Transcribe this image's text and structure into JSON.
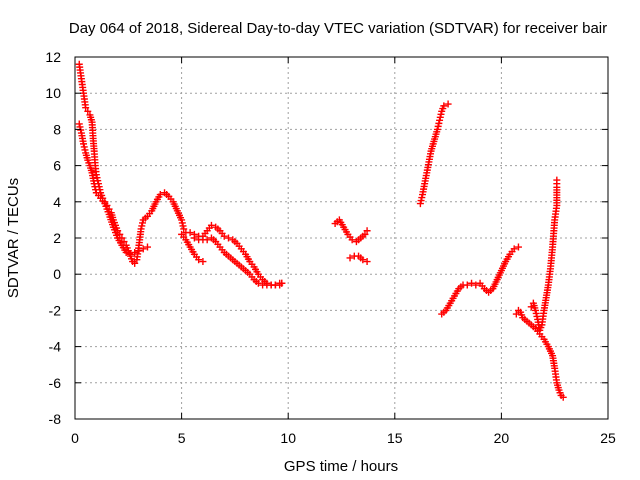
{
  "chart_data": {
    "type": "scatter",
    "title": "Day 064 of 2018, Sidereal Day-to-day VTEC variation (SDTVAR) for receiver bair",
    "xlabel": "GPS time / hours",
    "ylabel": "SDTVAR / TECUs",
    "xlim": [
      0,
      25
    ],
    "ylim": [
      -8,
      12
    ],
    "xticks": [
      0,
      5,
      10,
      15,
      20,
      25
    ],
    "yticks": [
      -8,
      -6,
      -4,
      -2,
      0,
      2,
      4,
      6,
      8,
      10,
      12
    ],
    "grid": true,
    "legend": "none",
    "marker": "plus",
    "color": "#ff0000",
    "series": [
      {
        "points": [
          [
            0.2,
            11.6
          ],
          [
            0.3,
            10.8
          ],
          [
            0.4,
            10.0
          ],
          [
            0.5,
            9.2
          ],
          [
            0.6,
            9.0
          ],
          [
            0.7,
            8.8
          ],
          [
            0.8,
            8.4
          ],
          [
            0.85,
            7.5
          ],
          [
            0.9,
            6.8
          ],
          [
            0.95,
            6.0
          ],
          [
            1.0,
            5.5
          ],
          [
            1.1,
            5.0
          ],
          [
            1.2,
            4.5
          ],
          [
            1.3,
            4.2
          ],
          [
            1.4,
            4.0
          ],
          [
            1.5,
            3.8
          ],
          [
            1.6,
            3.6
          ],
          [
            1.7,
            3.4
          ],
          [
            1.8,
            3.0
          ],
          [
            1.9,
            2.7
          ],
          [
            2.0,
            2.4
          ],
          [
            2.1,
            2.2
          ],
          [
            2.2,
            2.0
          ],
          [
            2.3,
            1.8
          ],
          [
            2.4,
            1.6
          ],
          [
            2.5,
            1.3
          ],
          [
            2.6,
            1.0
          ],
          [
            2.7,
            0.7
          ],
          [
            2.8,
            0.6
          ],
          [
            2.9,
            0.8
          ],
          [
            3.0,
            1.6
          ],
          [
            3.1,
            2.5
          ],
          [
            3.2,
            3.0
          ],
          [
            3.4,
            3.2
          ],
          [
            3.6,
            3.5
          ],
          [
            3.8,
            4.0
          ],
          [
            4.0,
            4.4
          ],
          [
            4.2,
            4.5
          ],
          [
            4.4,
            4.3
          ],
          [
            4.6,
            4.0
          ],
          [
            4.8,
            3.5
          ],
          [
            5.0,
            3.0
          ],
          [
            5.1,
            2.5
          ],
          [
            5.2,
            2.3
          ],
          [
            5.4,
            2.3
          ],
          [
            5.6,
            2.2
          ],
          [
            5.8,
            2.1
          ],
          [
            6.0,
            2.1
          ],
          [
            6.2,
            2.4
          ],
          [
            6.4,
            2.7
          ],
          [
            6.6,
            2.6
          ],
          [
            6.8,
            2.4
          ],
          [
            7.0,
            2.1
          ],
          [
            7.2,
            2.0
          ],
          [
            7.4,
            1.9
          ],
          [
            7.6,
            1.7
          ],
          [
            7.8,
            1.4
          ],
          [
            8.0,
            1.1
          ],
          [
            8.2,
            0.7
          ],
          [
            8.4,
            0.4
          ],
          [
            8.6,
            0.0
          ],
          [
            8.8,
            -0.3
          ],
          [
            9.0,
            -0.5
          ],
          [
            9.2,
            -0.6
          ],
          [
            9.4,
            -0.6
          ],
          [
            9.6,
            -0.6
          ],
          [
            9.7,
            -0.5
          ]
        ]
      },
      {
        "points": [
          [
            0.2,
            8.3
          ],
          [
            0.3,
            7.8
          ],
          [
            0.4,
            7.2
          ],
          [
            0.5,
            6.7
          ],
          [
            0.6,
            6.3
          ],
          [
            0.7,
            6.0
          ],
          [
            0.8,
            5.6
          ],
          [
            0.9,
            5.0
          ],
          [
            1.0,
            4.5
          ],
          [
            1.2,
            4.2
          ],
          [
            1.4,
            3.9
          ],
          [
            1.6,
            3.3
          ],
          [
            1.8,
            2.6
          ],
          [
            2.0,
            2.0
          ],
          [
            2.2,
            1.6
          ],
          [
            2.4,
            1.2
          ],
          [
            2.6,
            1.1
          ],
          [
            2.8,
            1.2
          ],
          [
            3.0,
            1.3
          ],
          [
            3.2,
            1.4
          ],
          [
            3.4,
            1.5
          ]
        ]
      },
      {
        "points": [
          [
            5.0,
            2.2
          ],
          [
            5.2,
            1.9
          ],
          [
            5.4,
            1.5
          ],
          [
            5.6,
            1.1
          ],
          [
            5.8,
            0.8
          ],
          [
            6.0,
            0.7
          ]
        ]
      },
      {
        "points": [
          [
            5.6,
            2.0
          ],
          [
            5.8,
            1.9
          ],
          [
            6.0,
            1.9
          ],
          [
            6.2,
            1.9
          ],
          [
            6.4,
            2.0
          ],
          [
            6.6,
            1.8
          ],
          [
            6.8,
            1.5
          ],
          [
            7.0,
            1.2
          ],
          [
            7.2,
            1.0
          ],
          [
            7.4,
            0.8
          ],
          [
            7.6,
            0.6
          ],
          [
            7.8,
            0.4
          ],
          [
            8.0,
            0.2
          ],
          [
            8.2,
            0.0
          ],
          [
            8.4,
            -0.3
          ],
          [
            8.6,
            -0.5
          ],
          [
            8.8,
            -0.6
          ],
          [
            9.0,
            -0.6
          ],
          [
            9.2,
            -0.6
          ],
          [
            9.4,
            -0.6
          ],
          [
            9.6,
            -0.5
          ],
          [
            9.7,
            -0.5
          ]
        ]
      },
      {
        "points": [
          [
            12.2,
            2.8
          ],
          [
            12.4,
            3.0
          ],
          [
            12.6,
            2.6
          ],
          [
            12.8,
            2.2
          ],
          [
            13.0,
            1.9
          ],
          [
            13.2,
            1.8
          ],
          [
            13.4,
            2.0
          ],
          [
            13.6,
            2.2
          ],
          [
            13.7,
            2.4
          ]
        ]
      },
      {
        "points": [
          [
            12.9,
            0.9
          ],
          [
            13.1,
            1.0
          ],
          [
            13.3,
            1.0
          ],
          [
            13.5,
            0.8
          ],
          [
            13.7,
            0.7
          ]
        ]
      },
      {
        "points": [
          [
            16.2,
            3.9
          ],
          [
            16.3,
            4.4
          ],
          [
            16.4,
            5.0
          ],
          [
            16.5,
            5.6
          ],
          [
            16.6,
            6.2
          ],
          [
            16.7,
            6.8
          ],
          [
            16.8,
            7.2
          ],
          [
            16.9,
            7.6
          ],
          [
            17.0,
            8.0
          ],
          [
            17.1,
            8.5
          ],
          [
            17.2,
            9.0
          ],
          [
            17.3,
            9.3
          ],
          [
            17.5,
            9.4
          ]
        ]
      },
      {
        "points": [
          [
            17.2,
            -2.2
          ],
          [
            17.4,
            -2.0
          ],
          [
            17.6,
            -1.6
          ],
          [
            17.8,
            -1.2
          ],
          [
            18.0,
            -0.8
          ],
          [
            18.2,
            -0.6
          ],
          [
            18.4,
            -0.6
          ],
          [
            18.6,
            -0.5
          ],
          [
            18.8,
            -0.6
          ],
          [
            19.0,
            -0.5
          ],
          [
            19.2,
            -0.8
          ],
          [
            19.4,
            -1.0
          ],
          [
            19.6,
            -0.8
          ],
          [
            19.8,
            -0.3
          ],
          [
            20.0,
            0.2
          ],
          [
            20.2,
            0.7
          ],
          [
            20.4,
            1.1
          ],
          [
            20.6,
            1.4
          ],
          [
            20.8,
            1.5
          ]
        ]
      },
      {
        "points": [
          [
            20.7,
            -2.2
          ],
          [
            20.8,
            -2.0
          ],
          [
            20.9,
            -2.1
          ],
          [
            21.0,
            -2.4
          ],
          [
            21.2,
            -2.6
          ],
          [
            21.4,
            -2.8
          ],
          [
            21.6,
            -3.0
          ],
          [
            21.8,
            -3.3
          ],
          [
            22.0,
            -3.6
          ],
          [
            22.2,
            -4.0
          ],
          [
            22.4,
            -4.5
          ],
          [
            22.5,
            -5.2
          ],
          [
            22.6,
            -6.0
          ],
          [
            22.7,
            -6.4
          ],
          [
            22.8,
            -6.7
          ],
          [
            22.9,
            -6.8
          ]
        ]
      },
      {
        "points": [
          [
            21.4,
            -1.8
          ],
          [
            21.5,
            -1.6
          ],
          [
            21.6,
            -2.0
          ],
          [
            21.7,
            -2.5
          ],
          [
            21.8,
            -3.1
          ],
          [
            21.9,
            -2.8
          ],
          [
            22.0,
            -2.0
          ],
          [
            22.1,
            -1.3
          ],
          [
            22.2,
            -0.6
          ],
          [
            22.3,
            0.3
          ],
          [
            22.4,
            1.5
          ],
          [
            22.5,
            3.0
          ],
          [
            22.6,
            3.8
          ],
          [
            22.6,
            4.8
          ],
          [
            22.6,
            5.2
          ]
        ]
      }
    ]
  }
}
